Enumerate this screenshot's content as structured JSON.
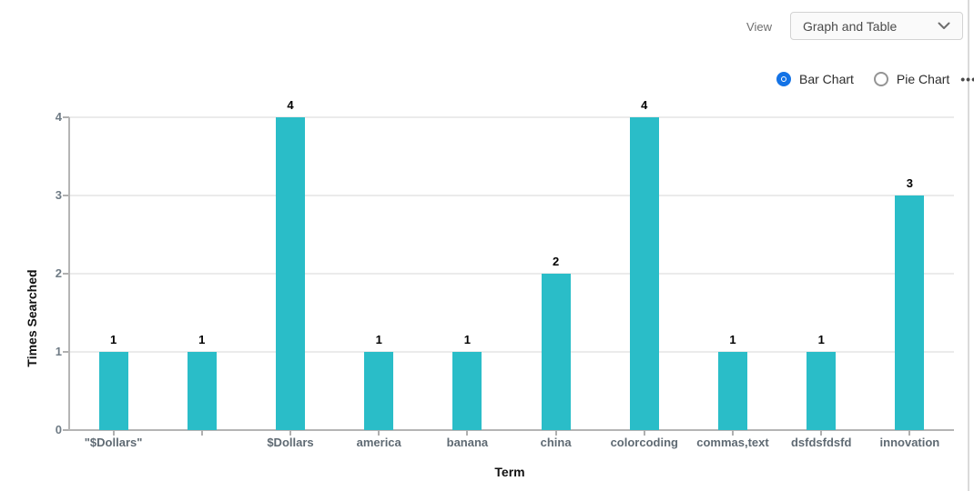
{
  "header": {
    "view_label": "View",
    "view_value": "Graph and Table"
  },
  "chart_controls": {
    "options": [
      {
        "label": "Bar Chart",
        "selected": true
      },
      {
        "label": "Pie Chart",
        "selected": false
      }
    ],
    "more_options": "•••"
  },
  "chart_data": {
    "type": "bar",
    "title": "",
    "xlabel": "Term",
    "ylabel": "Times Searched",
    "categories": [
      "\"$Dollars\"",
      "",
      "$Dollars",
      "america",
      "banana",
      "china",
      "colorcoding",
      "commas,text",
      "dsfdsfdsfd",
      "innovation"
    ],
    "values": [
      1,
      1,
      4,
      1,
      1,
      2,
      4,
      1,
      1,
      3
    ],
    "ylim": [
      0,
      4
    ],
    "yticks": [
      0,
      1,
      2,
      3,
      4
    ],
    "grid": true,
    "legend_position": "none"
  },
  "colors": {
    "bar": "#2abdc8",
    "accent_blue": "#1473e6",
    "axis": "#b5b5b5",
    "grid": "#ebebeb"
  }
}
